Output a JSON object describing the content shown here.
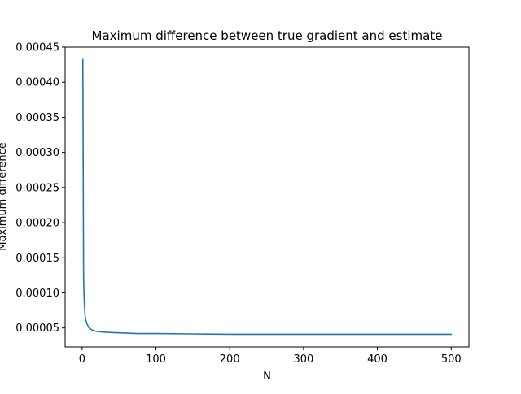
{
  "chart_data": {
    "type": "line",
    "title": "Maximum difference between true gradient and estimate",
    "xlabel": "N",
    "ylabel": "Maximum difference",
    "xlim": [
      -23,
      524
    ],
    "ylim": [
      2.3e-05,
      0.00045
    ],
    "xticks": [
      0,
      100,
      200,
      300,
      400,
      500
    ],
    "xtick_labels": [
      "0",
      "100",
      "200",
      "300",
      "400",
      "500"
    ],
    "yticks": [
      5e-05,
      0.0001,
      0.00015,
      0.0002,
      0.00025,
      0.0003,
      0.00035,
      0.0004,
      0.00045
    ],
    "ytick_labels": [
      "0.00005",
      "0.00010",
      "0.00015",
      "0.00020",
      "0.00025",
      "0.00030",
      "0.00035",
      "0.00040",
      "0.00045"
    ],
    "grid": false,
    "series": [
      {
        "color": "#1f77b4",
        "x": [
          1,
          2,
          3,
          4,
          5,
          7,
          10,
          15,
          20,
          30,
          40,
          50,
          75,
          100,
          150,
          200,
          250,
          300,
          350,
          400,
          450,
          500
        ],
        "y": [
          0.000432,
          0.00012,
          8.5e-05,
          6.8e-05,
          6.1e-05,
          5.5e-05,
          4.9e-05,
          4.65e-05,
          4.5e-05,
          4.4e-05,
          4.35e-05,
          4.3e-05,
          4.2e-05,
          4.2e-05,
          4.15e-05,
          4.1e-05,
          4.1e-05,
          4.1e-05,
          4.1e-05,
          4.1e-05,
          4.1e-05,
          4.1e-05
        ]
      }
    ]
  }
}
